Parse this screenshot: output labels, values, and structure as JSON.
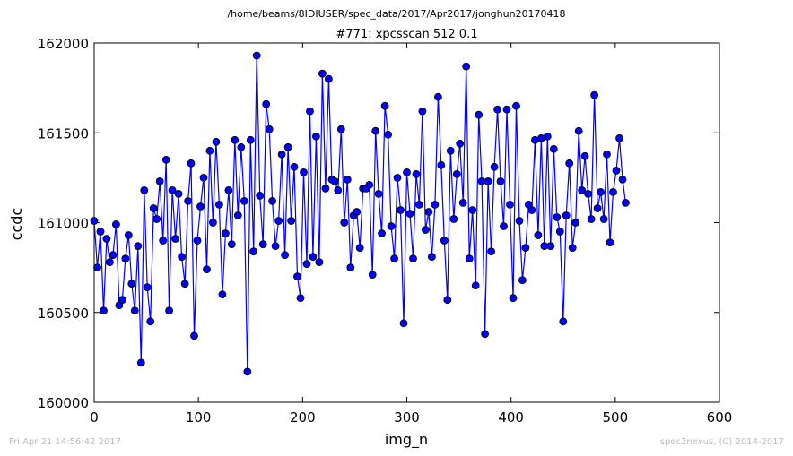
{
  "header": {
    "path": "/home/beams/8IDIUSER/spec_data/2017/Apr2017/jonghun20170418"
  },
  "footer": {
    "timestamp": "Fri Apr 21 14:56:42 2017",
    "credit": "spec2nexus, (C) 2014-2017"
  },
  "chart_data": {
    "type": "line",
    "title": "#771: xpcsscan 512 0.1",
    "xlabel": "img_n",
    "ylabel": "ccdc",
    "xlim": [
      0,
      600
    ],
    "ylim": [
      160000,
      162000
    ],
    "xticks": [
      "0",
      "100",
      "200",
      "300",
      "400",
      "500",
      "600"
    ],
    "yticks": [
      "160000",
      "160500",
      "161000",
      "161500",
      "162000"
    ],
    "grid": false,
    "line_color": "#0000ff",
    "marker_color": "#0000ff",
    "series": [
      {
        "x": [
          0,
          3,
          6,
          9,
          12,
          15,
          18,
          21,
          24,
          27,
          30,
          33,
          36,
          39,
          42,
          45,
          48,
          51,
          54,
          57,
          60,
          63,
          66,
          69,
          72,
          75,
          78,
          81,
          84,
          87,
          90,
          93,
          96,
          99,
          102,
          105,
          108,
          111,
          114,
          117,
          120,
          123,
          126,
          129,
          132,
          135,
          138,
          141,
          144,
          147,
          150,
          153,
          156,
          159,
          162,
          165,
          168,
          171,
          174,
          177,
          180,
          183,
          186,
          189,
          192,
          195,
          198,
          201,
          204,
          207,
          210,
          213,
          216,
          219,
          222,
          225,
          228,
          231,
          234,
          237,
          240,
          243,
          246,
          249,
          252,
          255,
          258,
          261,
          264,
          267,
          270,
          273,
          276,
          279,
          282,
          285,
          288,
          291,
          294,
          297,
          300,
          303,
          306,
          309,
          312,
          315,
          318,
          321,
          324,
          327,
          330,
          333,
          336,
          339,
          342,
          345,
          348,
          351,
          354,
          357,
          360,
          363,
          366,
          369,
          372,
          375,
          378,
          381,
          384,
          387,
          390,
          393,
          396,
          399,
          402,
          405,
          408,
          411,
          414,
          417,
          420,
          423,
          426,
          429,
          432,
          435,
          438,
          441,
          444,
          447,
          450,
          453,
          456,
          459,
          462,
          465,
          468,
          471,
          474,
          477,
          480,
          483,
          486,
          489,
          492,
          495,
          498,
          501,
          504,
          507,
          510
        ],
        "values": [
          161010,
          160750,
          160950,
          160510,
          160910,
          160780,
          160820,
          160990,
          160540,
          160570,
          160800,
          160930,
          160660,
          160510,
          160870,
          160220,
          161180,
          160640,
          160450,
          161080,
          161020,
          161230,
          160900,
          161350,
          160510,
          161180,
          160910,
          161160,
          160810,
          160660,
          161120,
          161330,
          160370,
          160900,
          161090,
          161250,
          160740,
          161400,
          161000,
          161450,
          161100,
          160600,
          160940,
          161180,
          160880,
          161460,
          161040,
          161420,
          161120,
          160170,
          161460,
          160840,
          161930,
          161150,
          160880,
          161660,
          161520,
          161120,
          160870,
          161010,
          161380,
          160820,
          161420,
          161010,
          161310,
          160700,
          160580,
          161280,
          160770,
          161620,
          160810,
          161480,
          160780,
          161830,
          161190,
          161800,
          161240,
          161230,
          161180,
          161520,
          161000,
          161240,
          160750,
          161040,
          161060,
          160860,
          161190,
          161190,
          161210,
          160710,
          161510,
          161160,
          160940,
          161650,
          161490,
          160980,
          160800,
          161250,
          161070,
          160440,
          161280,
          161050,
          160800,
          161270,
          161100,
          161620,
          160960,
          161060,
          160810,
          161100,
          161700,
          161320,
          160900,
          160570,
          161400,
          161020,
          161270,
          161440,
          161110,
          161870,
          160800,
          161070,
          160650,
          161600,
          161230,
          160380,
          161230,
          160840,
          161310,
          161630,
          161230,
          160980,
          161630,
          161100,
          160580,
          161650,
          161010,
          160680,
          160860,
          161100,
          161070,
          161460,
          160930,
          161470,
          160870,
          161480,
          160870,
          161410,
          161030,
          160950,
          160450,
          161040,
          161330,
          160860,
          161000,
          161510,
          161180,
          161370,
          161160,
          161020,
          161710,
          161080,
          161170,
          161020,
          161380,
          160890,
          161170,
          161290,
          161470,
          161240,
          161110
        ],
        "marker": "circle"
      }
    ]
  }
}
